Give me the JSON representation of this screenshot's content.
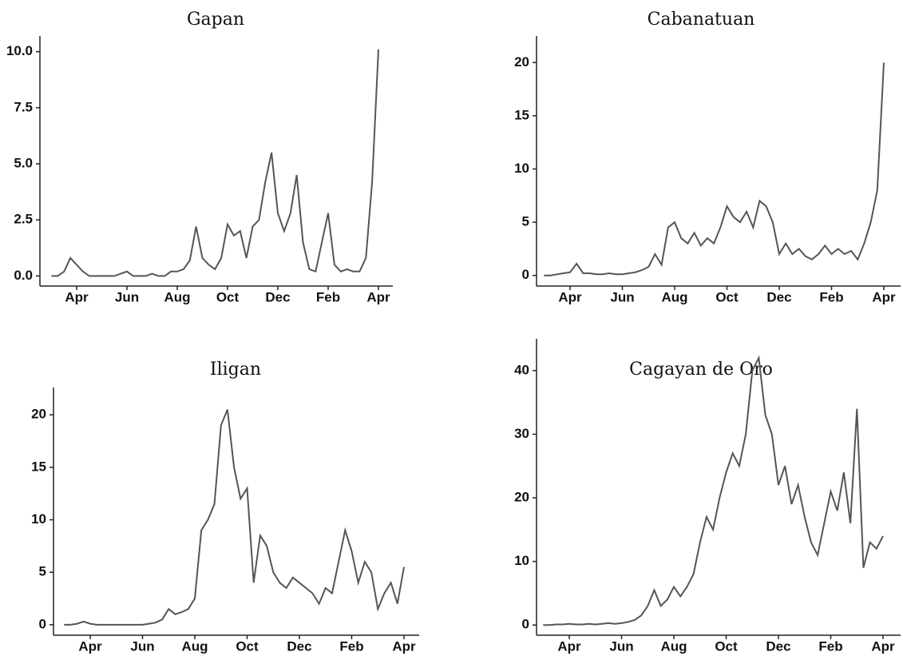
{
  "chart_data": [
    {
      "type": "line",
      "title": "Gapan",
      "color": "#555555",
      "categories": [
        null,
        null,
        null,
        null,
        "Apr",
        null,
        null,
        null,
        null,
        null,
        null,
        null,
        "Jun",
        null,
        null,
        null,
        null,
        null,
        null,
        null,
        "Aug",
        null,
        null,
        null,
        null,
        null,
        null,
        null,
        "Oct",
        null,
        null,
        null,
        null,
        null,
        null,
        null,
        "Dec",
        null,
        null,
        null,
        null,
        null,
        null,
        null,
        "Feb",
        null,
        null,
        null,
        null,
        null,
        null,
        null,
        "Apr"
      ],
      "values": [
        0,
        0,
        0.2,
        0.8,
        0.5,
        0.2,
        0,
        0,
        0,
        0,
        0,
        0.1,
        0.2,
        0,
        0,
        0,
        0.1,
        0,
        0,
        0.2,
        0.2,
        0.3,
        0.7,
        2.2,
        0.8,
        0.5,
        0.3,
        0.8,
        2.3,
        1.8,
        2.0,
        0.8,
        2.2,
        2.5,
        4.2,
        5.5,
        2.8,
        2.0,
        2.8,
        4.5,
        1.5,
        0.3,
        0.2,
        1.5,
        2.8,
        0.5,
        0.2,
        0.3,
        0.2,
        0.2,
        0.8,
        4.2,
        10.1
      ],
      "ylim": [
        -0.45,
        10.7
      ],
      "yticks": [
        {
          "value": 0,
          "label": "0.0"
        },
        {
          "value": 2.5,
          "label": "2.5"
        },
        {
          "value": 5,
          "label": "5.0"
        },
        {
          "value": 7.5,
          "label": "7.5"
        },
        {
          "value": 10,
          "label": "10.0"
        }
      ]
    },
    {
      "type": "line",
      "title": "Cabanatuan",
      "color": "#555555",
      "categories": [
        null,
        null,
        null,
        null,
        "Apr",
        null,
        null,
        null,
        null,
        null,
        null,
        null,
        "Jun",
        null,
        null,
        null,
        null,
        null,
        null,
        null,
        "Aug",
        null,
        null,
        null,
        null,
        null,
        null,
        null,
        "Oct",
        null,
        null,
        null,
        null,
        null,
        null,
        null,
        "Dec",
        null,
        null,
        null,
        null,
        null,
        null,
        null,
        "Feb",
        null,
        null,
        null,
        null,
        null,
        null,
        null,
        "Apr"
      ],
      "values": [
        0,
        0,
        0.1,
        0.2,
        0.3,
        1.1,
        0.2,
        0.2,
        0.1,
        0.1,
        0.2,
        0.1,
        0.1,
        0.2,
        0.3,
        0.5,
        0.8,
        2.0,
        1.0,
        4.5,
        5.0,
        3.5,
        3.0,
        4.0,
        2.8,
        3.5,
        3.0,
        4.5,
        6.5,
        5.5,
        5.0,
        6.0,
        4.5,
        7.0,
        6.5,
        5.0,
        2.0,
        3.0,
        2.0,
        2.5,
        1.8,
        1.5,
        2.0,
        2.8,
        2.0,
        2.5,
        2.0,
        2.3,
        1.5,
        3.0,
        5.0,
        8.0,
        20
      ],
      "ylim": [
        -1,
        22.5
      ],
      "yticks": [
        0,
        5,
        10,
        15,
        20
      ]
    },
    {
      "type": "line",
      "title": "Iligan",
      "color": "#555555",
      "categories": [
        null,
        null,
        null,
        null,
        "Apr",
        null,
        null,
        null,
        null,
        null,
        null,
        null,
        "Jun",
        null,
        null,
        null,
        null,
        null,
        null,
        null,
        "Aug",
        null,
        null,
        null,
        null,
        null,
        null,
        null,
        "Oct",
        null,
        null,
        null,
        null,
        null,
        null,
        null,
        "Dec",
        null,
        null,
        null,
        null,
        null,
        null,
        null,
        "Feb",
        null,
        null,
        null,
        null,
        null,
        null,
        null,
        "Apr"
      ],
      "values": [
        0,
        0,
        0.1,
        0.3,
        0.1,
        0,
        0,
        0,
        0,
        0,
        0,
        0,
        0,
        0.1,
        0.2,
        0.5,
        1.5,
        1.0,
        1.2,
        1.5,
        2.5,
        9,
        10,
        11.5,
        19,
        20.5,
        15,
        12,
        13,
        4,
        8.5,
        7.5,
        5,
        4,
        3.5,
        4.5,
        4,
        3.5,
        3,
        2,
        3.5,
        3,
        6,
        9,
        7,
        4,
        6,
        5,
        1.5,
        3,
        4,
        2,
        5.5
      ],
      "ylim": [
        -1,
        22.6
      ],
      "yticks": [
        0,
        5,
        10,
        15,
        20
      ]
    },
    {
      "type": "line",
      "title": "Cagayan de Oro",
      "color": "#555555",
      "categories": [
        null,
        null,
        null,
        null,
        "Apr",
        null,
        null,
        null,
        null,
        null,
        null,
        null,
        "Jun",
        null,
        null,
        null,
        null,
        null,
        null,
        null,
        "Aug",
        null,
        null,
        null,
        null,
        null,
        null,
        null,
        "Oct",
        null,
        null,
        null,
        null,
        null,
        null,
        null,
        "Dec",
        null,
        null,
        null,
        null,
        null,
        null,
        null,
        "Feb",
        null,
        null,
        null,
        null,
        null,
        null,
        null,
        "Apr"
      ],
      "values": [
        0,
        0,
        0.1,
        0.1,
        0.2,
        0.1,
        0.1,
        0.2,
        0.1,
        0.2,
        0.3,
        0.2,
        0.3,
        0.5,
        0.8,
        1.5,
        3,
        5.5,
        3,
        4,
        6,
        4.5,
        6,
        8,
        13,
        17,
        15,
        20,
        24,
        27,
        25,
        30,
        40,
        42,
        33,
        30,
        22,
        25,
        19,
        22,
        17,
        13,
        11,
        16,
        21,
        18,
        24,
        16,
        34,
        9,
        13,
        12,
        14
      ],
      "ylim": [
        -1.6,
        45
      ],
      "yticks": [
        0,
        10,
        20,
        30,
        40
      ]
    }
  ]
}
